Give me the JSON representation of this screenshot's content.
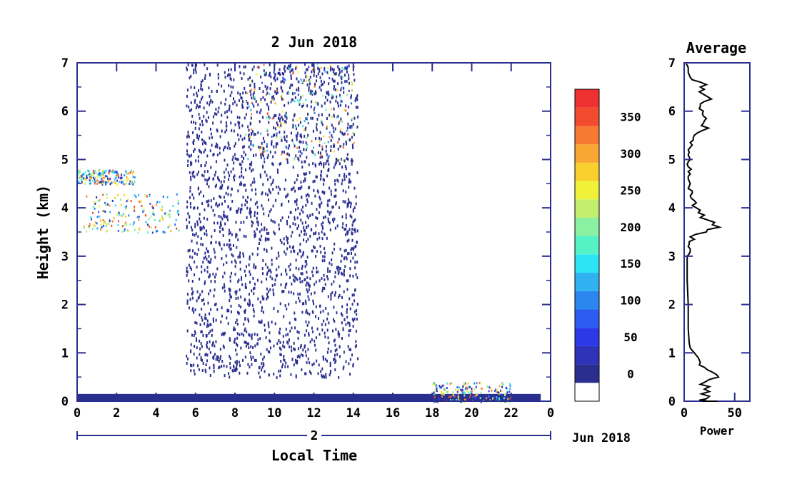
{
  "chart_data": [
    {
      "type": "heatmap",
      "title": "2 Jun 2018",
      "xlabel": "Local Time",
      "ylabel": "Height (km)",
      "xlim": [
        0,
        24
      ],
      "ylim": [
        0,
        7
      ],
      "x_ticks": [
        "0",
        "2",
        "4",
        "6",
        "8",
        "10",
        "12",
        "14",
        "16",
        "18",
        "20",
        "22",
        "0"
      ],
      "y_ticks": [
        "0",
        "1",
        "2",
        "3",
        "4",
        "5",
        "6",
        "7"
      ],
      "date_axis_label": "2",
      "date_axis_suffix": "Jun 2018",
      "colorbar": {
        "ticks": [
          "0",
          "50",
          "100",
          "150",
          "200",
          "250",
          "300",
          "350"
        ],
        "levels": [
          {
            "min": -25,
            "max": 0,
            "color": "#ffffff"
          },
          {
            "min": 0,
            "max": 25,
            "color": "#2a2f8f"
          },
          {
            "min": 25,
            "max": 50,
            "color": "#2e33b8"
          },
          {
            "min": 50,
            "max": 75,
            "color": "#2b39e8"
          },
          {
            "min": 75,
            "max": 100,
            "color": "#2c5cf2"
          },
          {
            "min": 100,
            "max": 125,
            "color": "#2b86ee"
          },
          {
            "min": 125,
            "max": 150,
            "color": "#30b2f0"
          },
          {
            "min": 150,
            "max": 175,
            "color": "#2ee3f4"
          },
          {
            "min": 175,
            "max": 200,
            "color": "#55f2c6"
          },
          {
            "min": 200,
            "max": 225,
            "color": "#8af0a2"
          },
          {
            "min": 225,
            "max": 250,
            "color": "#c2ef6e"
          },
          {
            "min": 250,
            "max": 275,
            "color": "#f0f23a"
          },
          {
            "min": 275,
            "max": 300,
            "color": "#fad02e"
          },
          {
            "min": 300,
            "max": 325,
            "color": "#f9a632"
          },
          {
            "min": 325,
            "max": 350,
            "color": "#f77a33"
          },
          {
            "min": 350,
            "max": 375,
            "color": "#f24b2e"
          },
          {
            "min": 375,
            "max": 400,
            "color": "#ee3030"
          }
        ]
      },
      "features": [
        {
          "name": "near-ground layer",
          "x": [
            0,
            23.5
          ],
          "y": [
            0,
            0.15
          ],
          "value_range": [
            0,
            50
          ]
        },
        {
          "name": "noise band",
          "x": [
            5.5,
            14.2
          ],
          "y": [
            0.5,
            7
          ],
          "value_range": [
            0,
            25
          ]
        },
        {
          "name": "cloud layer early",
          "x": [
            0,
            2.9
          ],
          "y": [
            4.5,
            4.8
          ],
          "value_range": [
            0,
            375
          ]
        },
        {
          "name": "cloud layer mid",
          "x": [
            0.3,
            5.2
          ],
          "y": [
            3.5,
            4.3
          ],
          "value_range": [
            0,
            375
          ]
        },
        {
          "name": "upper echoes",
          "x": [
            8.5,
            14
          ],
          "y": [
            5,
            7
          ],
          "value_range": [
            50,
            375
          ]
        },
        {
          "name": "afternoon echo",
          "x": [
            18,
            22
          ],
          "y": [
            0,
            0.4
          ],
          "value_range": [
            0,
            375
          ]
        }
      ]
    },
    {
      "type": "line",
      "title": "Average",
      "xlabel": "Power",
      "ylabel": "",
      "xlim": [
        0,
        65
      ],
      "ylim": [
        0,
        7
      ],
      "x_ticks": [
        "0",
        "50"
      ],
      "y_ticks": [
        "0",
        "1",
        "2",
        "3",
        "4",
        "5",
        "6",
        "7"
      ],
      "series": [
        {
          "x": [
            2,
            3,
            4,
            4,
            4,
            5,
            6,
            8,
            16,
            22,
            16,
            20,
            15,
            19,
            23,
            27,
            20,
            16,
            16,
            15,
            19,
            18,
            19,
            22,
            20,
            19,
            17,
            24,
            18,
            13,
            10,
            9,
            9,
            6,
            8,
            6,
            4,
            5,
            4,
            5,
            6,
            4,
            3,
            4,
            7,
            4,
            6,
            4,
            4,
            5,
            6,
            5,
            4,
            8,
            8,
            6,
            7,
            10,
            12,
            8,
            12,
            16,
            14,
            20,
            16,
            23,
            30,
            28,
            35,
            23,
            22,
            11,
            6,
            10,
            5,
            5,
            4,
            6,
            6,
            5,
            3,
            3,
            4,
            4,
            5,
            6,
            8,
            10,
            12,
            14,
            15,
            16,
            15,
            20,
            23,
            28,
            32,
            34,
            25,
            21,
            16,
            25,
            20,
            25,
            17,
            25,
            22,
            15,
            22,
            18,
            33,
            28,
            19,
            18,
            22
          ],
          "y": [
            6.98,
            6.95,
            6.9,
            6.85,
            6.8,
            6.75,
            6.7,
            6.65,
            6.6,
            6.55,
            6.5,
            6.45,
            6.4,
            6.35,
            6.3,
            6.25,
            6.2,
            6.15,
            6.1,
            6.05,
            6.0,
            5.95,
            5.9,
            5.85,
            5.8,
            5.75,
            5.7,
            5.65,
            5.6,
            5.55,
            5.5,
            5.45,
            5.4,
            5.35,
            5.3,
            5.25,
            5.2,
            5.15,
            5.1,
            5.05,
            5.0,
            4.95,
            4.9,
            4.85,
            4.8,
            4.75,
            4.7,
            4.65,
            4.6,
            4.55,
            4.5,
            4.45,
            4.4,
            4.35,
            4.3,
            4.25,
            4.2,
            4.15,
            4.1,
            4.05,
            4.0,
            3.95,
            3.9,
            3.85,
            3.8,
            3.75,
            3.7,
            3.65,
            3.6,
            3.55,
            3.5,
            3.45,
            3.4,
            3.35,
            3.3,
            3.25,
            3.2,
            3.15,
            3.1,
            3.05,
            3.0,
            2.5,
            2.0,
            1.5,
            1.2,
            1.1,
            1.05,
            1.0,
            0.95,
            0.9,
            0.85,
            0.8,
            0.75,
            0.7,
            0.65,
            0.6,
            0.55,
            0.5,
            0.45,
            0.4,
            0.35,
            0.3,
            0.25,
            0.2,
            0.15,
            0.1,
            0.05,
            0.02,
            0.01,
            0.0,
            0.0,
            0.0,
            0.0,
            0.0,
            0.0
          ]
        }
      ]
    }
  ]
}
